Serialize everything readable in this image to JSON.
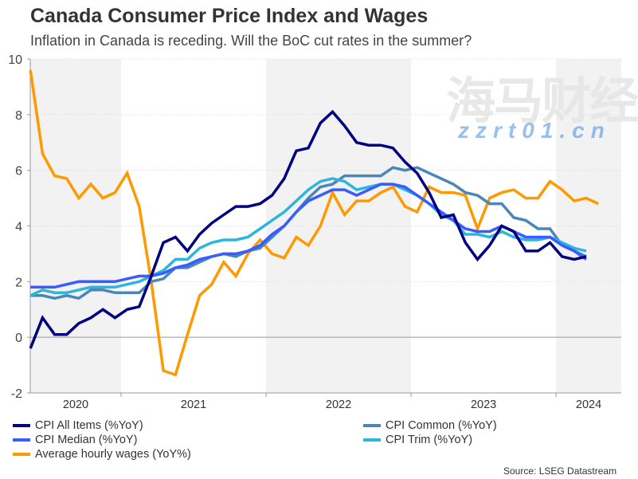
{
  "header": {
    "title": "Canada Consumer Price Index and Wages",
    "subtitle": "Inflation in Canada is receding. Will the BoC cut rates in the summer?"
  },
  "source": "Source: LSEG Datastream",
  "watermark": {
    "text_cn": "海马财经",
    "text_url": "zzrt01.cn"
  },
  "chart_data": {
    "type": "line",
    "title": "Canada Consumer Price Index and Wages",
    "subtitle": "Inflation in Canada is receding. Will the BoC cut rates in the summer?",
    "xlabel": "",
    "ylabel": "",
    "ylim": [
      -2,
      10
    ],
    "yticks": [
      -2,
      0,
      2,
      4,
      6,
      8,
      10
    ],
    "xlim": [
      "2020-05",
      "2024-06"
    ],
    "xticks": [
      "2020",
      "2021",
      "2022",
      "2023",
      "2024"
    ],
    "shaded_years": [
      "2020",
      "2022",
      "2024"
    ],
    "grid": true,
    "legend_position": "bottom",
    "start_month": "2020-05",
    "series": [
      {
        "name": "CPI All Items (%YoY)",
        "color": "#000080",
        "values": [
          -0.4,
          0.7,
          0.1,
          0.1,
          0.5,
          0.7,
          1.0,
          0.7,
          1.0,
          1.1,
          2.2,
          3.4,
          3.6,
          3.1,
          3.7,
          4.1,
          4.4,
          4.7,
          4.7,
          4.8,
          5.1,
          5.7,
          6.7,
          6.8,
          7.7,
          8.1,
          7.6,
          7.0,
          6.9,
          6.9,
          6.8,
          6.3,
          5.9,
          5.2,
          4.3,
          4.4,
          3.4,
          2.8,
          3.3,
          4.0,
          3.8,
          3.1,
          3.1,
          3.4,
          2.9,
          2.8,
          2.9
        ]
      },
      {
        "name": "CPI Common (%YoY)",
        "color": "#4a86b8",
        "values": [
          1.5,
          1.5,
          1.4,
          1.5,
          1.4,
          1.7,
          1.7,
          1.6,
          1.6,
          1.6,
          2.0,
          2.1,
          2.5,
          2.5,
          2.7,
          2.9,
          3.0,
          2.9,
          3.1,
          3.2,
          3.6,
          4.0,
          4.5,
          5.0,
          5.4,
          5.5,
          5.8,
          5.8,
          5.8,
          5.8,
          6.1,
          6.0,
          6.1,
          5.9,
          5.7,
          5.5,
          5.2,
          5.1,
          4.8,
          4.8,
          4.3,
          4.2,
          3.9,
          3.9,
          3.3,
          3.1,
          2.9
        ]
      },
      {
        "name": "CPI Median (%YoY)",
        "color": "#3a5cff",
        "values": [
          1.8,
          1.8,
          1.8,
          1.9,
          2.0,
          2.0,
          2.0,
          2.0,
          2.1,
          2.2,
          2.2,
          2.3,
          2.5,
          2.6,
          2.8,
          2.9,
          3.0,
          3.0,
          3.1,
          3.3,
          3.7,
          4.0,
          4.5,
          4.9,
          5.1,
          5.3,
          5.3,
          5.1,
          5.3,
          5.5,
          5.5,
          5.4,
          5.1,
          4.8,
          4.5,
          4.2,
          3.9,
          3.8,
          3.8,
          4.0,
          3.8,
          3.6,
          3.6,
          3.6,
          3.3,
          3.1,
          2.8
        ]
      },
      {
        "name": "CPI Trim (%YoY)",
        "color": "#2db5dc",
        "values": [
          1.5,
          1.7,
          1.6,
          1.6,
          1.7,
          1.8,
          1.8,
          1.8,
          1.9,
          2.0,
          2.2,
          2.4,
          2.8,
          2.8,
          3.2,
          3.4,
          3.5,
          3.5,
          3.6,
          3.9,
          4.2,
          4.5,
          4.9,
          5.3,
          5.6,
          5.7,
          5.6,
          5.3,
          5.4,
          5.5,
          5.5,
          5.3,
          5.1,
          4.8,
          4.4,
          4.2,
          3.7,
          3.7,
          3.6,
          3.8,
          3.6,
          3.5,
          3.5,
          3.6,
          3.4,
          3.2,
          3.1
        ]
      },
      {
        "name": "Average hourly wages (YoY%)",
        "color": "#ff9900",
        "values": [
          9.6,
          6.6,
          5.8,
          5.7,
          5.0,
          5.5,
          5.0,
          5.2,
          5.9,
          4.7,
          2.0,
          -1.2,
          -1.35,
          0.1,
          1.5,
          1.9,
          2.7,
          2.2,
          3.0,
          3.5,
          3.0,
          2.85,
          3.6,
          3.3,
          4.0,
          5.2,
          4.4,
          4.9,
          4.9,
          5.2,
          5.4,
          4.7,
          4.5,
          5.4,
          5.2,
          5.2,
          5.1,
          3.9,
          5.0,
          5.2,
          5.3,
          5.0,
          5.0,
          5.6,
          5.3,
          4.9,
          5.0,
          4.8
        ]
      }
    ]
  }
}
